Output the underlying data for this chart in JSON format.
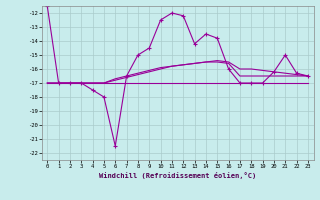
{
  "xlabel": "Windchill (Refroidissement éolien,°C)",
  "background_color": "#c8ecec",
  "grid_color": "#aacccc",
  "line_color": "#990099",
  "x": [
    0,
    1,
    2,
    3,
    4,
    5,
    6,
    7,
    8,
    9,
    10,
    11,
    12,
    13,
    14,
    15,
    16,
    17,
    18,
    19,
    20,
    21,
    22,
    23
  ],
  "line1": [
    -11.5,
    -17,
    -17,
    -17,
    -17.5,
    -18,
    -21.5,
    -16.5,
    -15,
    -14.5,
    -12.5,
    -12,
    -12.2,
    -14.2,
    -13.5,
    -13.8,
    -16,
    -17,
    -17,
    -17,
    -16.2,
    -15,
    -16.3,
    -16.5
  ],
  "line2": [
    -17,
    -17,
    -17,
    -17,
    -17,
    -17,
    -17,
    -17,
    -17,
    -17,
    -17,
    -17,
    -17,
    -17,
    -17,
    -17,
    -17,
    -17,
    -17,
    -17,
    -17,
    -17,
    -17,
    -17
  ],
  "line3": [
    -17,
    -17,
    -17,
    -17,
    -17,
    -17,
    -16.8,
    -16.6,
    -16.4,
    -16.2,
    -16,
    -15.8,
    -15.7,
    -15.6,
    -15.5,
    -15.4,
    -15.5,
    -16,
    -16,
    -16.1,
    -16.2,
    -16.3,
    -16.4,
    -16.5
  ],
  "line4": [
    -17,
    -17,
    -17,
    -17,
    -17,
    -17,
    -16.7,
    -16.5,
    -16.3,
    -16.1,
    -15.9,
    -15.8,
    -15.7,
    -15.6,
    -15.5,
    -15.5,
    -15.6,
    -16.5,
    -16.5,
    -16.5,
    -16.5,
    -16.5,
    -16.5,
    -16.5
  ],
  "ylim": [
    -22.5,
    -11.5
  ],
  "xlim": [
    -0.5,
    23.5
  ],
  "yticks": [
    -22,
    -21,
    -20,
    -19,
    -18,
    -17,
    -16,
    -15,
    -14,
    -13,
    -12
  ],
  "xticks": [
    0,
    1,
    2,
    3,
    4,
    5,
    6,
    7,
    8,
    9,
    10,
    11,
    12,
    13,
    14,
    15,
    16,
    17,
    18,
    19,
    20,
    21,
    22,
    23
  ]
}
